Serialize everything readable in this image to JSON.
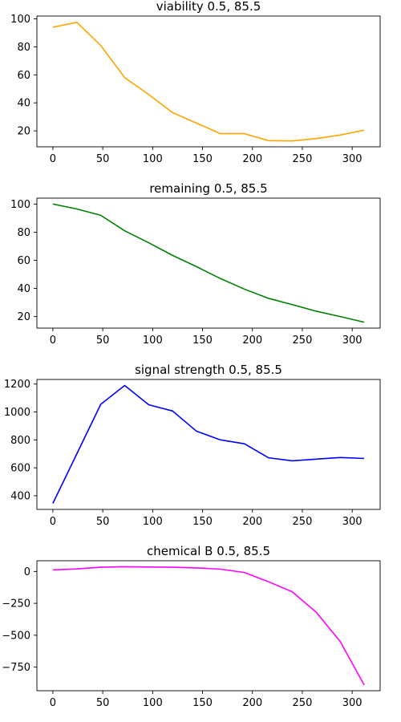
{
  "chart_data": [
    {
      "type": "line",
      "title": "viability 0.5, 85.5",
      "color": "#ffa500",
      "x": [
        0,
        24,
        48,
        72,
        96,
        120,
        144,
        168,
        192,
        216,
        240,
        264,
        288,
        312
      ],
      "y": [
        94,
        97.5,
        81,
        58,
        46,
        33,
        25.5,
        18,
        18,
        13,
        12.8,
        14.5,
        17,
        20.5
      ],
      "xlim": [
        -16,
        328
      ],
      "ylim": [
        8.6,
        102
      ],
      "xticks": [
        0,
        50,
        100,
        150,
        200,
        250,
        300
      ],
      "yticks": [
        20,
        40,
        60,
        80,
        100
      ],
      "grid": false
    },
    {
      "type": "line",
      "title": "remaining 0.5, 85.5",
      "color": "#008000",
      "x": [
        0,
        24,
        48,
        72,
        96,
        120,
        144,
        168,
        192,
        216,
        240,
        264,
        288,
        312
      ],
      "y": [
        100,
        96.5,
        92,
        81,
        72.5,
        63.5,
        55.5,
        47,
        39.5,
        33,
        28.5,
        23.8,
        20,
        16
      ],
      "xlim": [
        -16,
        328
      ],
      "ylim": [
        11.8,
        104.2
      ],
      "xticks": [
        0,
        50,
        100,
        150,
        200,
        250,
        300
      ],
      "yticks": [
        20,
        40,
        60,
        80,
        100
      ],
      "grid": false
    },
    {
      "type": "line",
      "title": "signal strength 0.5, 85.5",
      "color": "#0000ff",
      "x": [
        0,
        24,
        48,
        72,
        96,
        120,
        144,
        168,
        192,
        216,
        240,
        264,
        288,
        312
      ],
      "y": [
        345,
        700,
        1055,
        1190,
        1052,
        1007,
        862,
        800,
        772,
        672,
        650,
        662,
        674,
        667
      ],
      "xlim": [
        -16,
        328
      ],
      "ylim": [
        302,
        1233
      ],
      "xticks": [
        0,
        50,
        100,
        150,
        200,
        250,
        300
      ],
      "yticks": [
        400,
        600,
        800,
        1000,
        1200
      ],
      "grid": false
    },
    {
      "type": "line",
      "title": "chemical B 0.5, 85.5",
      "color": "#ff00ff",
      "x": [
        0,
        24,
        48,
        72,
        96,
        120,
        144,
        168,
        192,
        216,
        240,
        264,
        288,
        312
      ],
      "y": [
        12,
        20,
        33,
        37,
        35,
        33,
        28,
        18,
        -8,
        -80,
        -160,
        -320,
        -550,
        -890
      ],
      "xlim": [
        -16,
        328
      ],
      "ylim": [
        -935,
        84
      ],
      "xticks": [
        0,
        50,
        100,
        150,
        200,
        250,
        300
      ],
      "yticks": [
        -750,
        -500,
        -250,
        0
      ],
      "grid": false
    }
  ]
}
